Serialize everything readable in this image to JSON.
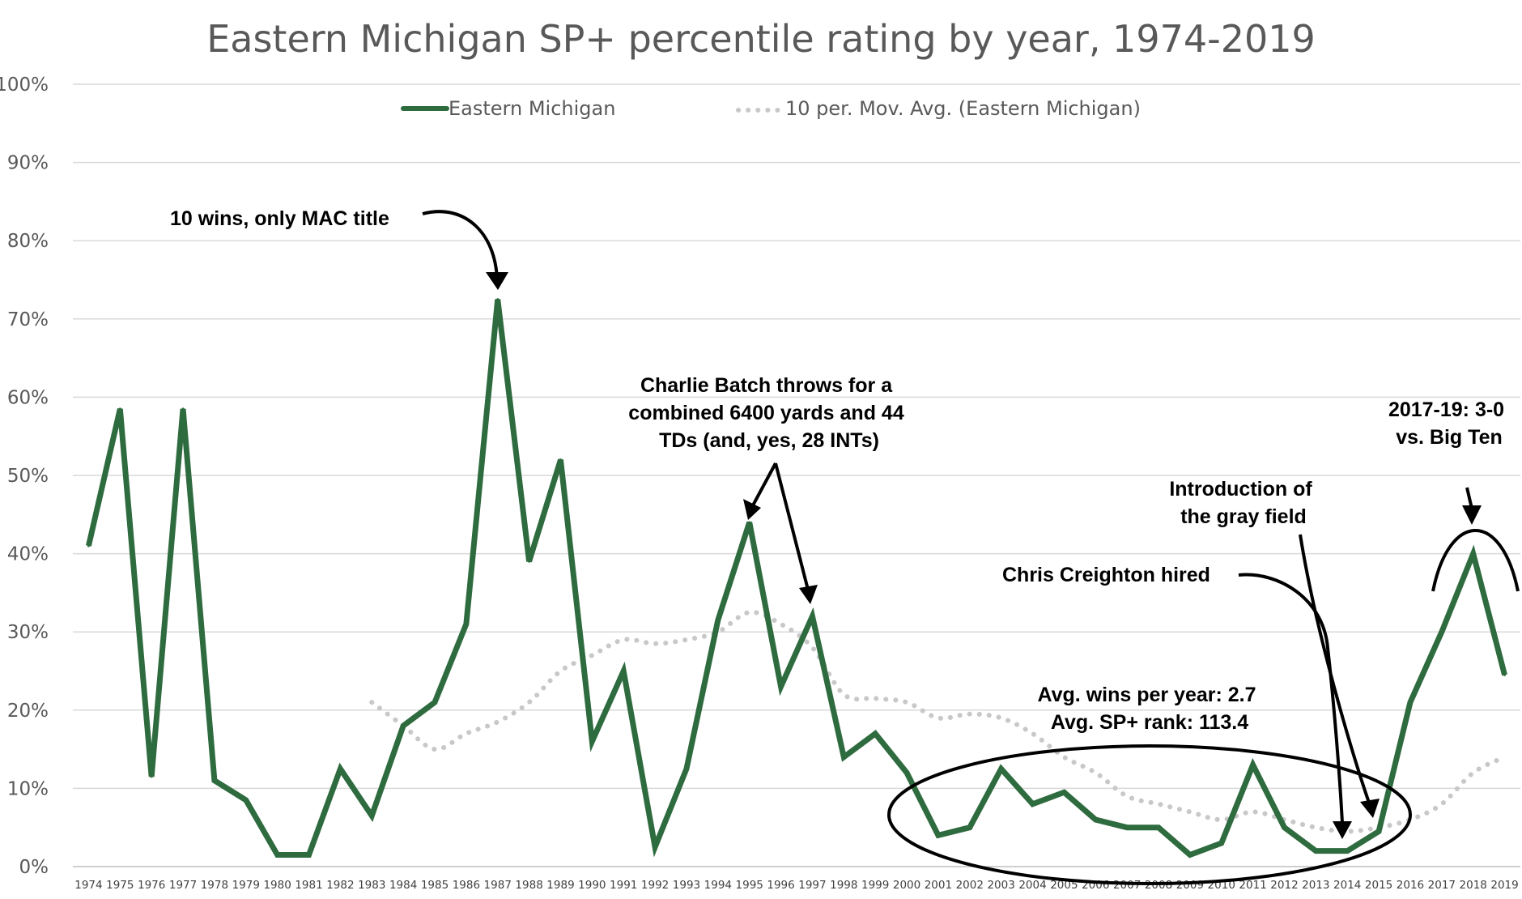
{
  "chart_data": {
    "type": "line",
    "title": "Eastern Michigan SP+ percentile rating by year, 1974-2019",
    "xlabel": "",
    "ylabel": "",
    "ylim": [
      0,
      100
    ],
    "y_ticks": [
      "0%",
      "10%",
      "20%",
      "30%",
      "40%",
      "50%",
      "60%",
      "70%",
      "80%",
      "90%",
      "100%"
    ],
    "categories": [
      "1974",
      "1975",
      "1976",
      "1977",
      "1978",
      "1979",
      "1980",
      "1981",
      "1982",
      "1983",
      "1984",
      "1985",
      "1986",
      "1987",
      "1988",
      "1989",
      "1990",
      "1991",
      "1992",
      "1993",
      "1994",
      "1995",
      "1996",
      "1997",
      "1998",
      "1999",
      "2000",
      "2001",
      "2002",
      "2003",
      "2004",
      "2005",
      "2006",
      "2007",
      "2008",
      "2009",
      "2010",
      "2011",
      "2012",
      "2013",
      "2014",
      "2015",
      "2016",
      "2017",
      "2018",
      "2019"
    ],
    "series": [
      {
        "name": "Eastern Michigan",
        "color": "#2e6b3e",
        "style": "solid",
        "values": [
          41,
          58.5,
          11.5,
          58.5,
          11,
          8.5,
          1.5,
          1.5,
          12.5,
          6.5,
          18,
          21,
          31,
          72.5,
          39,
          52,
          16,
          25,
          2.5,
          12.5,
          31.5,
          44,
          23,
          32,
          14,
          17,
          12,
          4,
          5,
          12.5,
          8,
          9.5,
          6,
          5,
          5,
          1.5,
          3,
          13,
          5,
          2,
          2,
          4.5,
          21,
          30,
          40,
          24.5
        ]
      },
      {
        "name": "10 per. Mov. Avg. (Eastern Michigan)",
        "color": "#c8c8c8",
        "style": "dotted",
        "values": [
          null,
          null,
          null,
          null,
          null,
          null,
          null,
          null,
          null,
          21,
          18,
          15,
          17,
          18.5,
          21,
          25,
          27,
          29,
          28.5,
          29,
          30,
          32.5,
          31,
          28,
          22,
          21.5,
          21,
          19,
          19.5,
          19,
          17,
          14,
          12,
          9,
          8,
          7,
          6,
          7,
          6,
          5,
          4.5,
          5,
          6,
          8,
          12,
          14
        ]
      }
    ],
    "legend": {
      "position": "top-center",
      "entries": [
        "Eastern Michigan",
        "10 per. Mov. Avg. (Eastern Michigan)"
      ]
    },
    "grid": "horizontal",
    "annotations": [
      {
        "id": "mac-title",
        "lines": [
          "10 wins, only MAC title"
        ]
      },
      {
        "id": "batch",
        "lines": [
          "Charlie Batch throws for a",
          "combined 6400 yards and 44",
          "TDs (and, yes, 28 INTs)"
        ]
      },
      {
        "id": "big-ten",
        "lines": [
          "2017-19: 3-0",
          "vs. Big Ten"
        ]
      },
      {
        "id": "gray-field",
        "lines": [
          "Introduction of",
          "the gray field"
        ]
      },
      {
        "id": "creighton",
        "lines": [
          "Chris Creighton hired"
        ]
      },
      {
        "id": "averages",
        "lines": [
          "Avg. wins per year: 2.7",
          "Avg. SP+ rank: 113.4"
        ]
      }
    ]
  }
}
